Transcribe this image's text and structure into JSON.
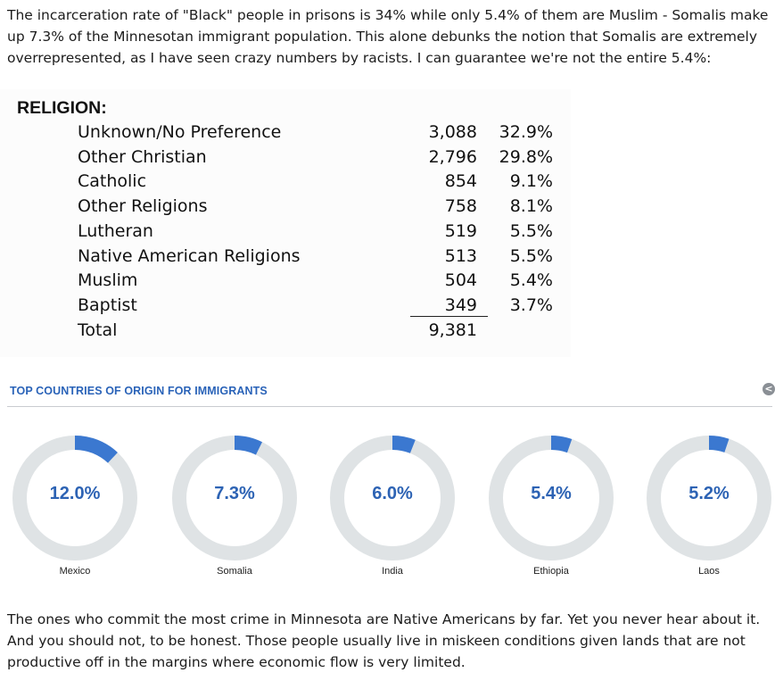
{
  "intro_text": "The incarceration rate of \"Black\" people in prisons is 34% while only 5.4% of them are Muslim - Somalis make up 7.3% of the Minnesotan immigrant population. This alone debunks the notion that Somalis are extremely overrepresented, as I have seen crazy numbers by racists. I can guarantee we're not the entire 5.4%:",
  "religion": {
    "heading": "RELIGION:",
    "rows": [
      {
        "label": "Unknown/No Preference",
        "count": "3,088",
        "percent": "32.9%"
      },
      {
        "label": "Other Christian",
        "count": "2,796",
        "percent": "29.8%"
      },
      {
        "label": "Catholic",
        "count": "854",
        "percent": "9.1%"
      },
      {
        "label": "Other Religions",
        "count": "758",
        "percent": "8.1%"
      },
      {
        "label": "Lutheran",
        "count": "519",
        "percent": "5.5%"
      },
      {
        "label": "Native American Religions",
        "count": "513",
        "percent": "5.5%"
      },
      {
        "label": "Muslim",
        "count": "504",
        "percent": "5.4%"
      },
      {
        "label": "Baptist",
        "count": "349",
        "percent": "3.7%"
      }
    ],
    "total_label": "Total",
    "total_count": "9,381"
  },
  "immigrants": {
    "title": "TOP COUNTRIES OF ORIGIN FOR IMMIGRANTS",
    "share_icon": "share-icon",
    "colors": {
      "fill": "#3b78d0",
      "track": "#dfe3e5",
      "value_text": "#2d63b4"
    }
  },
  "chart_data": {
    "type": "pie",
    "title": "TOP COUNTRIES OF ORIGIN FOR IMMIGRANTS",
    "categories": [
      "Mexico",
      "Somalia",
      "India",
      "Ethiopia",
      "Laos"
    ],
    "values": [
      12.0,
      7.3,
      6.0,
      5.4,
      5.2
    ],
    "labels": [
      "12.0%",
      "7.3%",
      "6.0%",
      "5.4%",
      "5.2%"
    ]
  },
  "outro_text": "The ones who commit the most crime in Minnesota are Native Americans by far. Yet you never hear about it. And you should not, to be honest. Those people usually live in miskeen conditions given lands that are not productive off in the margins where economic flow is very limited."
}
